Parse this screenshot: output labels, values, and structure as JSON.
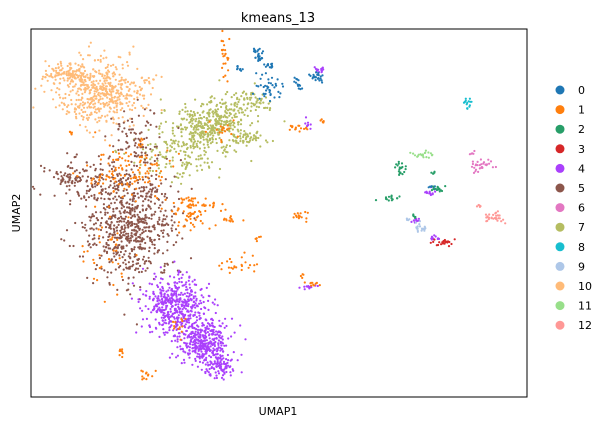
{
  "chart_data": {
    "type": "scatter",
    "title": "kmeans_13",
    "xlabel": "UMAP1",
    "ylabel": "UMAP2",
    "xticks": false,
    "yticks": false,
    "grid": false,
    "legend_position": "right",
    "xlim": [
      0,
      100
    ],
    "ylim": [
      0,
      100
    ],
    "legend": [
      {
        "label": "0",
        "color": "#1f77b4"
      },
      {
        "label": "1",
        "color": "#ff7f0e"
      },
      {
        "label": "2",
        "color": "#279e68"
      },
      {
        "label": "3",
        "color": "#d62728"
      },
      {
        "label": "4",
        "color": "#aa40fc"
      },
      {
        "label": "5",
        "color": "#8c564b"
      },
      {
        "label": "6",
        "color": "#e377c2"
      },
      {
        "label": "7",
        "color": "#b5bd61"
      },
      {
        "label": "8",
        "color": "#17becf"
      },
      {
        "label": "9",
        "color": "#aec7e8"
      },
      {
        "label": "10",
        "color": "#ffbb78"
      },
      {
        "label": "11",
        "color": "#98df8a"
      },
      {
        "label": "12",
        "color": "#ff9896"
      }
    ],
    "series": [
      {
        "name": "10",
        "color": "#ffbb78",
        "blobs": [
          {
            "x": 14,
            "y": 83,
            "sx": 4.5,
            "sy": 4.5,
            "n": 520
          },
          {
            "x": 7,
            "y": 88,
            "sx": 2.2,
            "sy": 1.5,
            "n": 90
          }
        ]
      },
      {
        "name": "7",
        "color": "#b5bd61",
        "blobs": [
          {
            "x": 36,
            "y": 74,
            "sx": 3.8,
            "sy": 3.2,
            "n": 380
          },
          {
            "x": 30,
            "y": 66,
            "sx": 4.5,
            "sy": 3.5,
            "n": 140
          },
          {
            "x": 44,
            "y": 80,
            "sx": 2.5,
            "sy": 2,
            "n": 80
          },
          {
            "x": 44,
            "y": 70,
            "sx": 1.5,
            "sy": 1,
            "n": 40
          }
        ]
      },
      {
        "name": "5",
        "color": "#8c564b",
        "blobs": [
          {
            "x": 20,
            "y": 47,
            "sx": 4.5,
            "sy": 8,
            "n": 720
          },
          {
            "x": 12,
            "y": 60,
            "sx": 4,
            "sy": 3,
            "n": 100
          },
          {
            "x": 7,
            "y": 59,
            "sx": 1.5,
            "sy": 0.8,
            "n": 30
          },
          {
            "x": 22,
            "y": 70,
            "sx": 3,
            "sy": 4,
            "n": 80
          }
        ]
      },
      {
        "name": "4",
        "color": "#aa40fc",
        "blobs": [
          {
            "x": 29,
            "y": 25,
            "sx": 3.2,
            "sy": 4,
            "n": 450
          },
          {
            "x": 35,
            "y": 15,
            "sx": 2.3,
            "sy": 3.2,
            "n": 380
          },
          {
            "x": 38,
            "y": 8,
            "sx": 1.5,
            "sy": 1.5,
            "n": 80
          },
          {
            "x": 56,
            "y": 30,
            "sx": 0.8,
            "sy": 0.3,
            "n": 15
          },
          {
            "x": 58,
            "y": 89,
            "sx": 0.8,
            "sy": 0.6,
            "n": 15
          },
          {
            "x": 56,
            "y": 74,
            "sx": 0.4,
            "sy": 0.8,
            "n": 8
          },
          {
            "x": 80.5,
            "y": 55.5,
            "sx": 0.5,
            "sy": 0.5,
            "n": 12
          },
          {
            "x": 81.5,
            "y": 43,
            "sx": 0.5,
            "sy": 0.4,
            "n": 10
          },
          {
            "x": 78,
            "y": 48,
            "sx": 0.8,
            "sy": 0.3,
            "n": 10
          }
        ]
      },
      {
        "name": "1",
        "color": "#ff7f0e",
        "blobs": [
          {
            "x": 20,
            "y": 62,
            "sx": 4,
            "sy": 4,
            "n": 120
          },
          {
            "x": 32,
            "y": 50,
            "sx": 2.5,
            "sy": 2.5,
            "n": 60
          },
          {
            "x": 16,
            "y": 40,
            "sx": 2.5,
            "sy": 6,
            "n": 40
          },
          {
            "x": 39,
            "y": 92,
            "sx": 0.4,
            "sy": 3,
            "n": 25
          },
          {
            "x": 39,
            "y": 72,
            "sx": 1.5,
            "sy": 1.5,
            "n": 20
          },
          {
            "x": 34,
            "y": 52,
            "sx": 2,
            "sy": 1,
            "n": 25
          },
          {
            "x": 40,
            "y": 48,
            "sx": 1.2,
            "sy": 0.5,
            "n": 12
          },
          {
            "x": 42,
            "y": 36,
            "sx": 2,
            "sy": 1.2,
            "n": 25
          },
          {
            "x": 54,
            "y": 73,
            "sx": 1,
            "sy": 0.5,
            "n": 15
          },
          {
            "x": 59,
            "y": 75,
            "sx": 0.4,
            "sy": 0.5,
            "n": 6
          },
          {
            "x": 54,
            "y": 49,
            "sx": 1.2,
            "sy": 0.6,
            "n": 15
          },
          {
            "x": 46,
            "y": 43,
            "sx": 0.5,
            "sy": 0.4,
            "n": 6
          },
          {
            "x": 18,
            "y": 12,
            "sx": 0.3,
            "sy": 0.8,
            "n": 8
          },
          {
            "x": 23,
            "y": 6,
            "sx": 0.8,
            "sy": 0.8,
            "n": 12
          },
          {
            "x": 29,
            "y": 19,
            "sx": 1.5,
            "sy": 1.2,
            "n": 12
          },
          {
            "x": 57,
            "y": 31,
            "sx": 0.7,
            "sy": 0.4,
            "n": 10
          },
          {
            "x": 55,
            "y": 33,
            "sx": 0.3,
            "sy": 0.3,
            "n": 4
          },
          {
            "x": 8,
            "y": 72,
            "sx": 0.3,
            "sy": 0.3,
            "n": 5
          }
        ]
      },
      {
        "name": "0",
        "color": "#1f77b4",
        "blobs": [
          {
            "x": 46,
            "y": 93,
            "sx": 0.7,
            "sy": 1.2,
            "n": 25
          },
          {
            "x": 48,
            "y": 84,
            "sx": 1.5,
            "sy": 1.8,
            "n": 40
          },
          {
            "x": 54,
            "y": 85,
            "sx": 0.5,
            "sy": 1,
            "n": 15
          },
          {
            "x": 58,
            "y": 87,
            "sx": 1,
            "sy": 0.8,
            "n": 25
          },
          {
            "x": 48,
            "y": 90,
            "sx": 0.6,
            "sy": 0.6,
            "n": 12
          },
          {
            "x": 42,
            "y": 89,
            "sx": 0.5,
            "sy": 0.5,
            "n": 8
          },
          {
            "x": 81,
            "y": 57,
            "sx": 0.5,
            "sy": 0.3,
            "n": 8
          }
        ]
      },
      {
        "name": "2",
        "color": "#279e68",
        "blobs": [
          {
            "x": 74.5,
            "y": 62,
            "sx": 0.7,
            "sy": 1,
            "n": 20
          },
          {
            "x": 73,
            "y": 54,
            "sx": 1.2,
            "sy": 0.5,
            "n": 15
          },
          {
            "x": 82,
            "y": 56.5,
            "sx": 0.8,
            "sy": 0.4,
            "n": 15
          },
          {
            "x": 81,
            "y": 61,
            "sx": 0.3,
            "sy": 0.3,
            "n": 5
          },
          {
            "x": 77.5,
            "y": 49,
            "sx": 0.3,
            "sy": 0.3,
            "n": 5
          }
        ]
      },
      {
        "name": "11",
        "color": "#98df8a",
        "blobs": [
          {
            "x": 79,
            "y": 66,
            "sx": 1.2,
            "sy": 0.5,
            "n": 20
          }
        ]
      },
      {
        "name": "6",
        "color": "#e377c2",
        "blobs": [
          {
            "x": 91,
            "y": 63,
            "sx": 1.2,
            "sy": 0.8,
            "n": 30
          },
          {
            "x": 89,
            "y": 66,
            "sx": 0.3,
            "sy": 0.4,
            "n": 5
          }
        ]
      },
      {
        "name": "12",
        "color": "#ff9896",
        "blobs": [
          {
            "x": 93,
            "y": 49,
            "sx": 1.2,
            "sy": 0.8,
            "n": 30
          },
          {
            "x": 90.5,
            "y": 52,
            "sx": 0.4,
            "sy": 0.4,
            "n": 5
          }
        ]
      },
      {
        "name": "8",
        "color": "#17becf",
        "blobs": [
          {
            "x": 88,
            "y": 79.5,
            "sx": 0.4,
            "sy": 1,
            "n": 15
          }
        ]
      },
      {
        "name": "9",
        "color": "#aec7e8",
        "blobs": [
          {
            "x": 78.5,
            "y": 46,
            "sx": 1,
            "sy": 0.6,
            "n": 20
          },
          {
            "x": 76,
            "y": 48,
            "sx": 0.3,
            "sy": 0.3,
            "n": 4
          }
        ]
      },
      {
        "name": "3",
        "color": "#d62728",
        "blobs": [
          {
            "x": 83,
            "y": 42,
            "sx": 1.2,
            "sy": 0.5,
            "n": 22
          }
        ]
      }
    ]
  }
}
